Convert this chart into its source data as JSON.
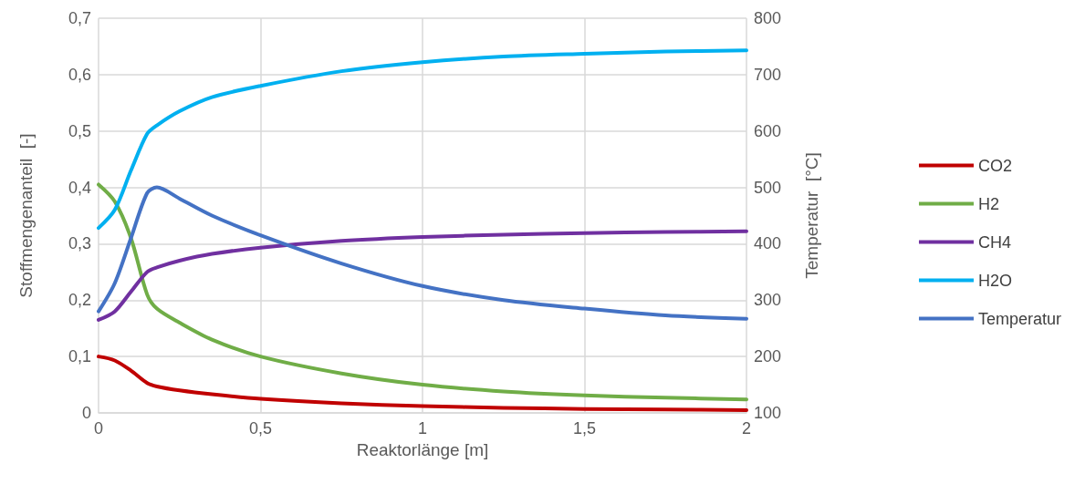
{
  "chart_data": {
    "type": "line",
    "xlabel": "Reaktorlänge [m]",
    "ylabel": "Stoffmengenanteil  [-]",
    "y2label": "Temperatur  [°C]",
    "x": [
      0,
      0.05,
      0.1,
      0.15,
      0.18,
      0.25,
      0.35,
      0.5,
      0.75,
      1,
      1.25,
      1.5,
      1.75,
      2
    ],
    "xlim": [
      0,
      2
    ],
    "xticks": [
      0,
      {
        "value": 0.5,
        "label": "0,5"
      },
      1,
      {
        "value": 1.5,
        "label": "1,5"
      },
      2
    ],
    "ylim": [
      0,
      0.7
    ],
    "yticks": [
      0,
      {
        "value": 0.1,
        "label": "0,1"
      },
      {
        "value": 0.2,
        "label": "0,2"
      },
      {
        "value": 0.3,
        "label": "0,3"
      },
      {
        "value": 0.4,
        "label": "0,4"
      },
      {
        "value": 0.5,
        "label": "0,5"
      },
      {
        "value": 0.6,
        "label": "0,6"
      },
      {
        "value": 0.7,
        "label": "0,7"
      }
    ],
    "y2lim": [
      100,
      800
    ],
    "y2ticks": [
      100,
      200,
      300,
      400,
      500,
      600,
      700,
      800
    ],
    "grid": true,
    "legend": "right",
    "marker": "none",
    "line_style": "solid",
    "series": [
      {
        "name": "CO2",
        "color": "#c00000",
        "values": [
          0.1,
          0.093,
          0.075,
          0.053,
          0.047,
          0.04,
          0.033,
          0.025,
          0.017,
          0.012,
          0.009,
          0.007,
          0.006,
          0.005
        ]
      },
      {
        "name": "H2",
        "color": "#70ad47",
        "values": [
          0.405,
          0.375,
          0.31,
          0.21,
          0.185,
          0.16,
          0.13,
          0.1,
          0.07,
          0.05,
          0.038,
          0.031,
          0.027,
          0.024
        ]
      },
      {
        "name": "CH4",
        "color": "#7030a0",
        "values": [
          0.165,
          0.18,
          0.215,
          0.25,
          0.258,
          0.27,
          0.282,
          0.293,
          0.305,
          0.312,
          0.316,
          0.319,
          0.321,
          0.322
        ]
      },
      {
        "name": "H2O",
        "color": "#00b0f0",
        "values": [
          0.328,
          0.36,
          0.43,
          0.495,
          0.51,
          0.535,
          0.56,
          0.58,
          0.606,
          0.622,
          0.632,
          0.637,
          0.641,
          0.643
        ]
      },
      {
        "name": "Temperatur",
        "color": "#4472c4",
        "axis": "y2",
        "values": [
          280,
          330,
          410,
          490,
          500,
          480,
          450,
          415,
          365,
          325,
          300,
          285,
          273,
          267
        ]
      }
    ]
  }
}
